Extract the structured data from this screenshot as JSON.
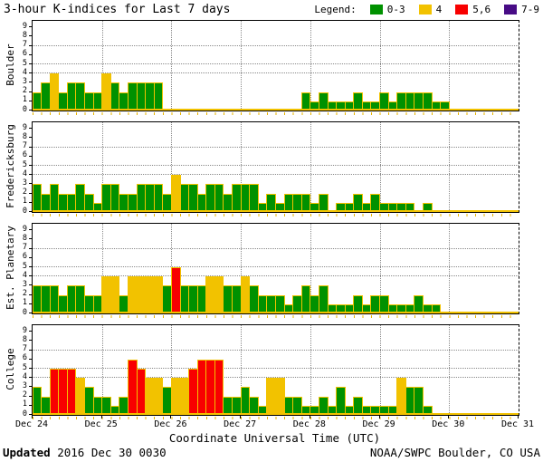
{
  "legend": {
    "label": "Legend:",
    "items": [
      {
        "label": "0-3",
        "color": "#009100"
      },
      {
        "label": "4",
        "color": "#F2C200"
      },
      {
        "label": "5,6",
        "color": "#F80000"
      },
      {
        "label": "7-9",
        "color": "#470B85"
      }
    ]
  },
  "footer": {
    "updated_label": "Updated",
    "updated_value": "2016 Dec 30 0030",
    "source": "NOAA/SWPC Boulder, CO USA"
  },
  "chart_data": {
    "type": "bar",
    "title": "3-hour K-indices for Last 7 days",
    "xlabel": "Coordinate Universal Time (UTC)",
    "x_tick_labels": [
      "Dec 24",
      "Dec 25",
      "Dec 26",
      "Dec 27",
      "Dec 28",
      "Dec 29",
      "Dec 30",
      "Dec 31"
    ],
    "ylim": [
      0,
      9
    ],
    "y_tick_labels": [
      "0",
      "1",
      "2",
      "3",
      "4",
      "5",
      "6",
      "7",
      "8",
      "9"
    ],
    "threshold_gridlines": [
      4,
      5,
      7
    ],
    "grid": "dotted day boundaries vertical, dotted K=4,5,7 horizontal",
    "legend_position": "top-right",
    "interval_hours": 3,
    "bars_per_day": 8,
    "color_scale": {
      "0-3": "#009100",
      "4": "#F2C200",
      "5-6": "#F80000",
      "7-9": "#470B85"
    },
    "bar_outline_color": "#F2C200",
    "series": [
      {
        "name": "Boulder",
        "values": [
          2,
          3,
          4,
          2,
          3,
          3,
          2,
          2,
          4,
          3,
          2,
          3,
          3,
          3,
          3,
          0,
          0,
          0,
          0,
          0,
          0,
          0,
          0,
          0,
          0,
          0,
          0,
          0,
          0,
          0,
          0,
          2,
          1,
          2,
          1,
          1,
          1,
          2,
          1,
          1,
          2,
          1,
          2,
          2,
          2,
          2,
          1,
          1,
          0,
          0,
          0,
          0,
          0,
          0,
          0,
          0
        ]
      },
      {
        "name": "Fredericksburg",
        "values": [
          3,
          2,
          3,
          2,
          2,
          3,
          2,
          1,
          3,
          3,
          2,
          2,
          3,
          3,
          3,
          2,
          4,
          3,
          3,
          2,
          3,
          3,
          2,
          3,
          3,
          3,
          1,
          2,
          1,
          2,
          2,
          2,
          1,
          2,
          0,
          1,
          1,
          2,
          1,
          2,
          1,
          1,
          1,
          1,
          0,
          1,
          0,
          0,
          0,
          0,
          0,
          0,
          0,
          0,
          0,
          0
        ]
      },
      {
        "name": "Est. Planetary",
        "values": [
          3,
          3,
          3,
          2,
          3,
          3,
          2,
          2,
          4,
          4,
          2,
          4,
          4,
          4,
          4,
          3,
          5,
          3,
          3,
          3,
          4,
          4,
          3,
          3,
          4,
          3,
          2,
          2,
          2,
          1,
          2,
          3,
          2,
          3,
          1,
          1,
          1,
          2,
          1,
          2,
          2,
          1,
          1,
          1,
          2,
          1,
          1,
          0,
          0,
          0,
          0,
          0,
          0,
          0,
          0,
          0
        ]
      },
      {
        "name": "College",
        "values": [
          3,
          2,
          5,
          5,
          5,
          4,
          3,
          2,
          2,
          1,
          2,
          6,
          5,
          4,
          4,
          3,
          4,
          4,
          5,
          6,
          6,
          6,
          2,
          2,
          3,
          2,
          1,
          4,
          4,
          2,
          2,
          1,
          1,
          2,
          1,
          3,
          1,
          2,
          1,
          1,
          1,
          1,
          4,
          3,
          3,
          1,
          0,
          0,
          0,
          0,
          0,
          0,
          0,
          0,
          0,
          0
        ]
      }
    ]
  }
}
